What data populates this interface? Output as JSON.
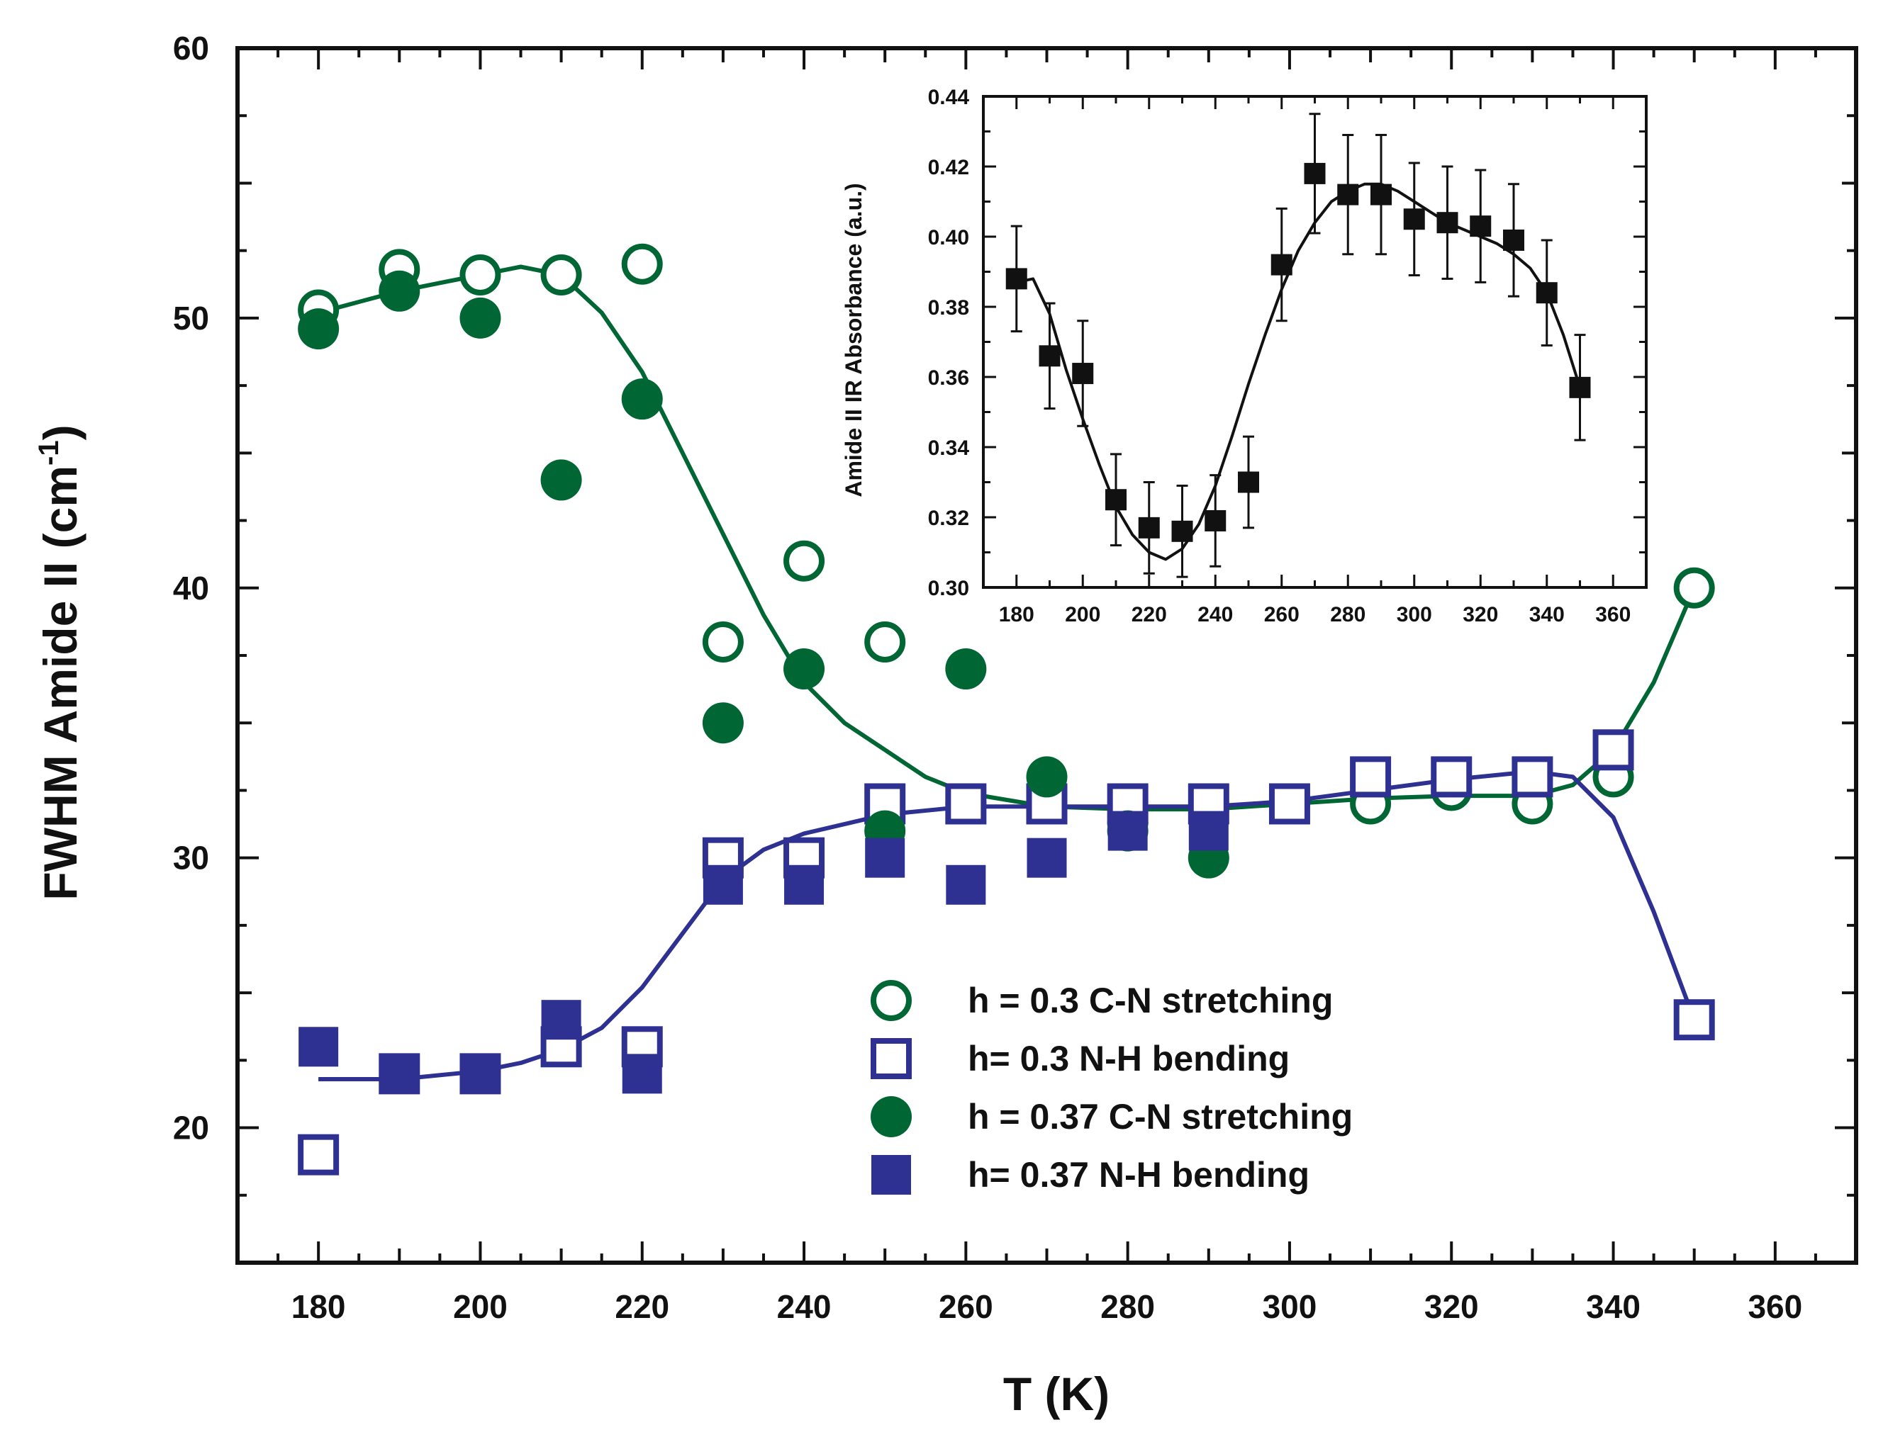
{
  "colors": {
    "green": "#006633",
    "blue": "#2e3192",
    "black": "#111111"
  },
  "chart_data": [
    {
      "id": "main",
      "type": "scatter",
      "xlabel": "T (K)",
      "ylabel_main": "FWHM Amide II (cm",
      "ylabel_sup": "-1",
      "ylabel_end": ")",
      "xlim": [
        170,
        370
      ],
      "ylim": [
        15,
        60
      ],
      "xticks": [
        180,
        200,
        220,
        240,
        260,
        280,
        300,
        320,
        340,
        360
      ],
      "yticks": [
        20,
        30,
        40,
        50,
        60
      ],
      "grid": false,
      "legend_position": "bottom-right",
      "series": [
        {
          "name": "h = 0.3 C-N stretching",
          "marker": "open-circle",
          "color": "#006633",
          "points": [
            [
              180,
              50.3
            ],
            [
              190,
              51.8
            ],
            [
              200,
              51.6
            ],
            [
              210,
              51.6
            ],
            [
              220,
              52.0
            ],
            [
              230,
              38.0
            ],
            [
              240,
              41.0
            ],
            [
              250,
              38.0
            ],
            [
              260,
              32.0
            ],
            [
              270,
              32.0
            ],
            [
              280,
              31.3
            ],
            [
              290,
              31.8
            ],
            [
              300,
              32.0
            ],
            [
              310,
              32.0
            ],
            [
              320,
              32.5
            ],
            [
              330,
              32.0
            ],
            [
              340,
              33.0
            ],
            [
              350,
              40.0
            ]
          ]
        },
        {
          "name": "h= 0.3 N-H bending",
          "marker": "open-square",
          "color": "#2e3192",
          "points": [
            [
              180,
              19.0
            ],
            [
              190,
              22.0
            ],
            [
              200,
              22.0
            ],
            [
              210,
              23.0
            ],
            [
              220,
              23.0
            ],
            [
              230,
              30.0
            ],
            [
              240,
              30.0
            ],
            [
              250,
              32.0
            ],
            [
              260,
              32.0
            ],
            [
              270,
              32.0
            ],
            [
              280,
              32.0
            ],
            [
              290,
              32.0
            ],
            [
              300,
              32.0
            ],
            [
              310,
              33.0
            ],
            [
              320,
              33.0
            ],
            [
              330,
              33.0
            ],
            [
              340,
              34.0
            ],
            [
              350,
              24.0
            ]
          ]
        },
        {
          "name": "h = 0.37 C-N stretching",
          "marker": "filled-circle",
          "color": "#006633",
          "points": [
            [
              180,
              49.6
            ],
            [
              190,
              51.0
            ],
            [
              200,
              50.0
            ],
            [
              210,
              44.0
            ],
            [
              220,
              47.0
            ],
            [
              230,
              35.0
            ],
            [
              240,
              37.0
            ],
            [
              250,
              31.0
            ],
            [
              260,
              37.0
            ],
            [
              270,
              33.0
            ],
            [
              280,
              31.0
            ],
            [
              290,
              30.0
            ]
          ]
        },
        {
          "name": "h= 0.37 N-H bending",
          "marker": "filled-square",
          "color": "#2e3192",
          "points": [
            [
              180,
              23.0
            ],
            [
              190,
              22.0
            ],
            [
              200,
              22.0
            ],
            [
              210,
              24.0
            ],
            [
              220,
              22.0
            ],
            [
              230,
              29.0
            ],
            [
              240,
              29.0
            ],
            [
              250,
              30.0
            ],
            [
              260,
              29.0
            ],
            [
              270,
              30.0
            ],
            [
              280,
              31.0
            ],
            [
              290,
              31.0
            ]
          ]
        }
      ],
      "fit_lines": [
        {
          "color": "#006633",
          "points": [
            [
              180,
              50.2
            ],
            [
              190,
              51.0
            ],
            [
              200,
              51.6
            ],
            [
              205,
              51.9
            ],
            [
              210,
              51.6
            ],
            [
              215,
              50.2
            ],
            [
              220,
              48.0
            ],
            [
              225,
              45.0
            ],
            [
              230,
              42.0
            ],
            [
              235,
              39.0
            ],
            [
              240,
              36.5
            ],
            [
              245,
              35.0
            ],
            [
              250,
              34.0
            ],
            [
              255,
              33.0
            ],
            [
              260,
              32.4
            ],
            [
              270,
              31.9
            ],
            [
              280,
              31.8
            ],
            [
              290,
              31.8
            ],
            [
              300,
              32.0
            ],
            [
              310,
              32.2
            ],
            [
              320,
              32.3
            ],
            [
              330,
              32.3
            ],
            [
              335,
              32.7
            ],
            [
              340,
              34.0
            ],
            [
              345,
              36.5
            ],
            [
              350,
              40.0
            ]
          ]
        },
        {
          "color": "#2e3192",
          "points": [
            [
              180,
              21.8
            ],
            [
              185,
              21.8
            ],
            [
              190,
              21.8
            ],
            [
              200,
              22.1
            ],
            [
              205,
              22.4
            ],
            [
              210,
              22.9
            ],
            [
              215,
              23.7
            ],
            [
              220,
              25.2
            ],
            [
              225,
              27.2
            ],
            [
              230,
              29.2
            ],
            [
              235,
              30.3
            ],
            [
              240,
              30.9
            ],
            [
              250,
              31.6
            ],
            [
              260,
              31.9
            ],
            [
              270,
              31.9
            ],
            [
              280,
              31.9
            ],
            [
              290,
              31.9
            ],
            [
              300,
              32.1
            ],
            [
              310,
              32.5
            ],
            [
              320,
              32.9
            ],
            [
              330,
              33.2
            ],
            [
              335,
              33.0
            ],
            [
              340,
              31.5
            ],
            [
              345,
              28.0
            ],
            [
              350,
              24.0
            ]
          ]
        }
      ]
    },
    {
      "id": "inset",
      "type": "scatter",
      "ylabel": "Amide II IR Absorbance (a.u.)",
      "xlim": [
        170,
        370
      ],
      "ylim": [
        0.3,
        0.44
      ],
      "xticks": [
        180,
        200,
        220,
        240,
        260,
        280,
        300,
        320,
        340,
        360
      ],
      "yticks": [
        0.3,
        0.32,
        0.34,
        0.36,
        0.38,
        0.4,
        0.42,
        0.44
      ],
      "ytick_labels": [
        "0.30",
        "0.32",
        "0.34",
        "0.36",
        "0.38",
        "0.40",
        "0.42",
        "0.44"
      ],
      "grid": false,
      "series": [
        {
          "marker": "filled-square",
          "color": "#111111",
          "points": [
            [
              180,
              0.388
            ],
            [
              190,
              0.366
            ],
            [
              200,
              0.361
            ],
            [
              210,
              0.325
            ],
            [
              220,
              0.317
            ],
            [
              230,
              0.316
            ],
            [
              240,
              0.319
            ],
            [
              250,
              0.33
            ],
            [
              260,
              0.392
            ],
            [
              270,
              0.418
            ],
            [
              280,
              0.412
            ],
            [
              290,
              0.412
            ],
            [
              300,
              0.405
            ],
            [
              310,
              0.404
            ],
            [
              320,
              0.403
            ],
            [
              330,
              0.399
            ],
            [
              340,
              0.384
            ],
            [
              350,
              0.357
            ]
          ],
          "errors": [
            0.015,
            0.015,
            0.015,
            0.013,
            0.013,
            0.013,
            0.013,
            0.013,
            0.016,
            0.017,
            0.017,
            0.017,
            0.016,
            0.016,
            0.016,
            0.016,
            0.015,
            0.015
          ]
        }
      ],
      "fit_line": {
        "color": "#111111",
        "points": [
          [
            180,
            0.387
          ],
          [
            185,
            0.388
          ],
          [
            190,
            0.378
          ],
          [
            195,
            0.362
          ],
          [
            200,
            0.348
          ],
          [
            205,
            0.335
          ],
          [
            210,
            0.323
          ],
          [
            215,
            0.315
          ],
          [
            220,
            0.31
          ],
          [
            225,
            0.308
          ],
          [
            230,
            0.311
          ],
          [
            235,
            0.318
          ],
          [
            240,
            0.329
          ],
          [
            245,
            0.343
          ],
          [
            250,
            0.358
          ],
          [
            255,
            0.372
          ],
          [
            260,
            0.385
          ],
          [
            265,
            0.396
          ],
          [
            270,
            0.404
          ],
          [
            275,
            0.41
          ],
          [
            280,
            0.413
          ],
          [
            285,
            0.415
          ],
          [
            290,
            0.415
          ],
          [
            295,
            0.413
          ],
          [
            300,
            0.41
          ],
          [
            305,
            0.407
          ],
          [
            310,
            0.404
          ],
          [
            315,
            0.402
          ],
          [
            320,
            0.4
          ],
          [
            325,
            0.398
          ],
          [
            330,
            0.395
          ],
          [
            335,
            0.391
          ],
          [
            340,
            0.384
          ],
          [
            345,
            0.372
          ],
          [
            350,
            0.357
          ]
        ]
      }
    }
  ]
}
